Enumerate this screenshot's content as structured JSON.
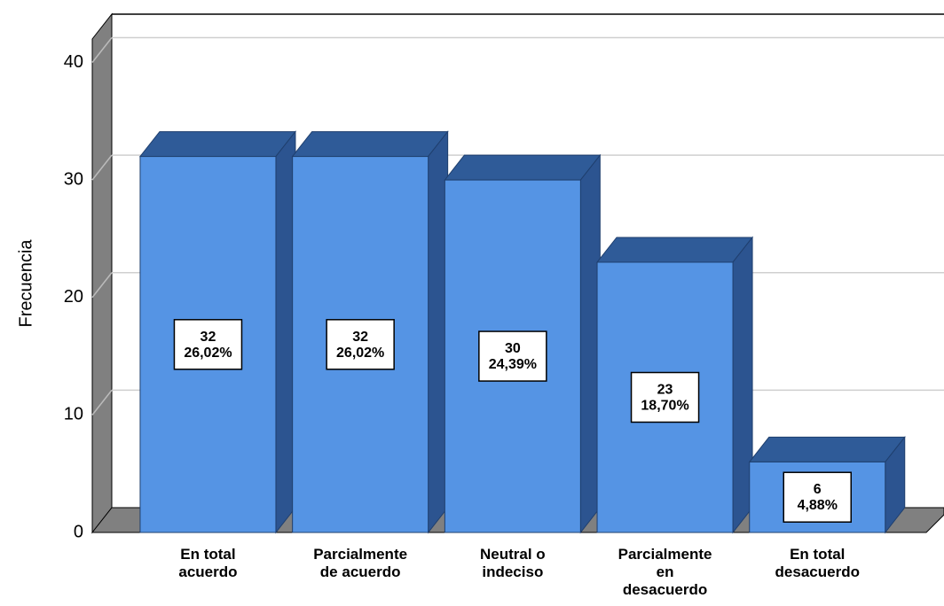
{
  "chart_data": {
    "type": "bar3d",
    "y_label": "Frecuencia",
    "categories": [
      "En total\nacuerdo",
      "Parcialmente\nde acuerdo",
      "Neutral o\nindeciso",
      "Parcialmente\nen\ndesacuerdo",
      "En total\ndesacuerdo"
    ],
    "values": [
      32,
      32,
      30,
      23,
      6
    ],
    "value_labels": [
      "32\n26,02%",
      "32\n26,02%",
      "30\n24,39%",
      "23\n18,70%",
      "6\n4,88%"
    ],
    "color": "#5594e4",
    "ylim": [
      0,
      42
    ],
    "yticks": [
      0,
      10,
      20,
      30,
      40
    ],
    "grid": true
  }
}
